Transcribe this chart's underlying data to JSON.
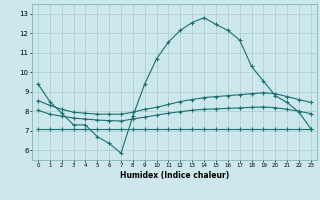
{
  "title": "",
  "xlabel": "Humidex (Indice chaleur)",
  "xlim": [
    -0.5,
    23.5
  ],
  "ylim": [
    5.5,
    13.5
  ],
  "xticks": [
    0,
    1,
    2,
    3,
    4,
    5,
    6,
    7,
    8,
    9,
    10,
    11,
    12,
    13,
    14,
    15,
    16,
    17,
    18,
    19,
    20,
    21,
    22,
    23
  ],
  "yticks": [
    6,
    7,
    8,
    9,
    10,
    11,
    12,
    13
  ],
  "background_color": "#cce8ec",
  "grid_color": "#aacccc",
  "line_color": "#1a7070",
  "line_width": 0.8,
  "marker": "+",
  "marker_size": 3.5,
  "marker_edge_width": 0.8,
  "curves": {
    "curve1_x": [
      0,
      1,
      2,
      3,
      4,
      5,
      6,
      7,
      8,
      9,
      10,
      11,
      12,
      13,
      14,
      15,
      16,
      17,
      18,
      19,
      20,
      21,
      22,
      23
    ],
    "curve1_y": [
      9.4,
      8.5,
      7.9,
      7.3,
      7.3,
      6.7,
      6.35,
      5.85,
      7.75,
      9.4,
      10.7,
      11.55,
      12.15,
      12.55,
      12.8,
      12.45,
      12.15,
      11.65,
      10.3,
      9.55,
      8.8,
      8.45,
      7.95,
      7.1
    ],
    "curve2_x": [
      0,
      1,
      2,
      3,
      4,
      5,
      6,
      7,
      8,
      9,
      10,
      11,
      12,
      13,
      14,
      15,
      16,
      17,
      18,
      19,
      20,
      21,
      22,
      23
    ],
    "curve2_y": [
      8.55,
      8.3,
      8.1,
      7.95,
      7.9,
      7.85,
      7.85,
      7.85,
      7.95,
      8.1,
      8.2,
      8.35,
      8.5,
      8.6,
      8.7,
      8.75,
      8.8,
      8.85,
      8.9,
      8.95,
      8.9,
      8.75,
      8.6,
      8.45
    ],
    "curve3_x": [
      0,
      1,
      2,
      3,
      4,
      5,
      6,
      7,
      8,
      9,
      10,
      11,
      12,
      13,
      14,
      15,
      16,
      17,
      18,
      19,
      20,
      21,
      22,
      23
    ],
    "curve3_y": [
      8.05,
      7.85,
      7.75,
      7.65,
      7.6,
      7.55,
      7.52,
      7.5,
      7.6,
      7.7,
      7.8,
      7.9,
      7.98,
      8.05,
      8.1,
      8.12,
      8.15,
      8.17,
      8.2,
      8.22,
      8.18,
      8.1,
      8.0,
      7.88
    ],
    "curve4_x": [
      0,
      1,
      2,
      3,
      4,
      5,
      6,
      7,
      8,
      9,
      10,
      11,
      12,
      13,
      14,
      15,
      16,
      17,
      18,
      19,
      20,
      21,
      22,
      23
    ],
    "curve4_y": [
      7.1,
      7.1,
      7.1,
      7.1,
      7.1,
      7.1,
      7.1,
      7.1,
      7.1,
      7.1,
      7.1,
      7.1,
      7.1,
      7.1,
      7.1,
      7.1,
      7.1,
      7.1,
      7.1,
      7.1,
      7.1,
      7.1,
      7.1,
      7.1
    ]
  }
}
